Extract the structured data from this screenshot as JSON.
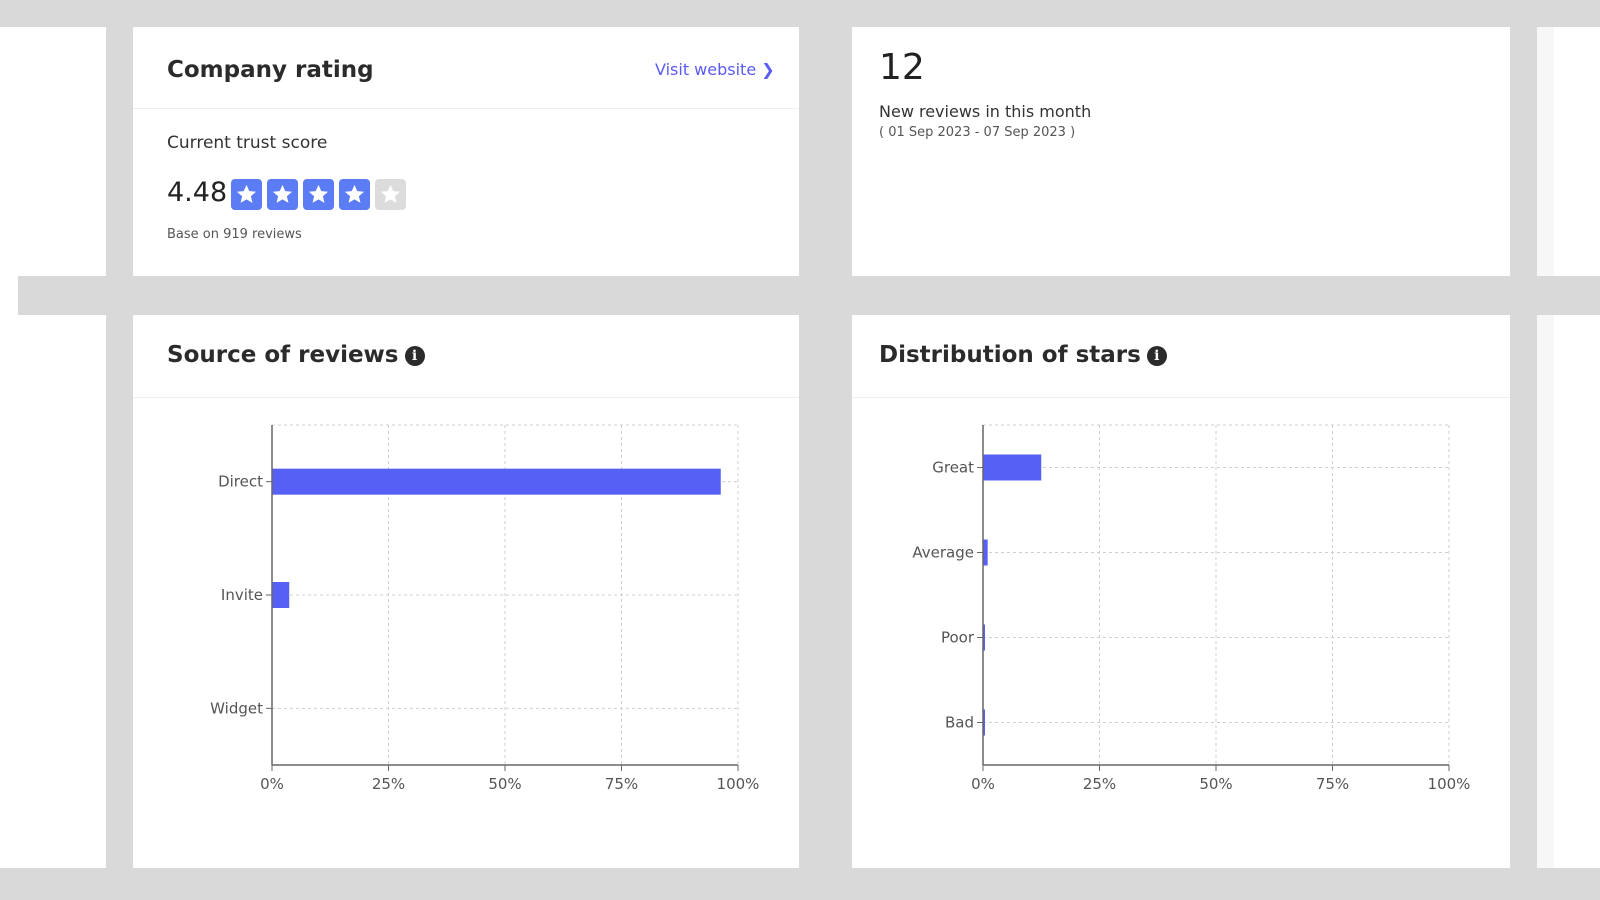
{
  "rating_card": {
    "title": "Company rating",
    "visit_link": "Visit website",
    "trust_label": "Current trust score",
    "score": "4.48",
    "stars_filled": 4,
    "stars_total": 5,
    "base_text": "Base on 919 reviews"
  },
  "reviews_card": {
    "count": "12",
    "label": "New reviews in this month",
    "range": "( 01 Sep 2023 - 07 Sep 2023 )"
  },
  "source_card": {
    "title": "Source of reviews",
    "info_icon": "info-circle-icon"
  },
  "distribution_card": {
    "title": "Distribution of stars",
    "info_icon": "info-circle-icon"
  },
  "colors": {
    "accent": "#5b5bf5",
    "bar": "#5660f5",
    "star_filled": "#5b7cf2",
    "star_empty": "#dcdcdc"
  },
  "chart_data": [
    {
      "type": "bar",
      "orientation": "horizontal",
      "categories": [
        "Direct",
        "Invite",
        "Widget"
      ],
      "values": [
        96.3,
        3.7,
        0
      ],
      "xlim": [
        0,
        100
      ],
      "xticks": [
        "0%",
        "25%",
        "50%",
        "75%",
        "100%"
      ],
      "grid": true
    },
    {
      "type": "bar",
      "orientation": "horizontal",
      "categories": [
        "Great",
        "Average",
        "Poor",
        "Bad"
      ],
      "values": [
        12.5,
        1.0,
        0.2,
        0.2
      ],
      "xlim": [
        0,
        100
      ],
      "xticks": [
        "0%",
        "25%",
        "50%",
        "75%",
        "100%"
      ],
      "grid": true
    }
  ]
}
